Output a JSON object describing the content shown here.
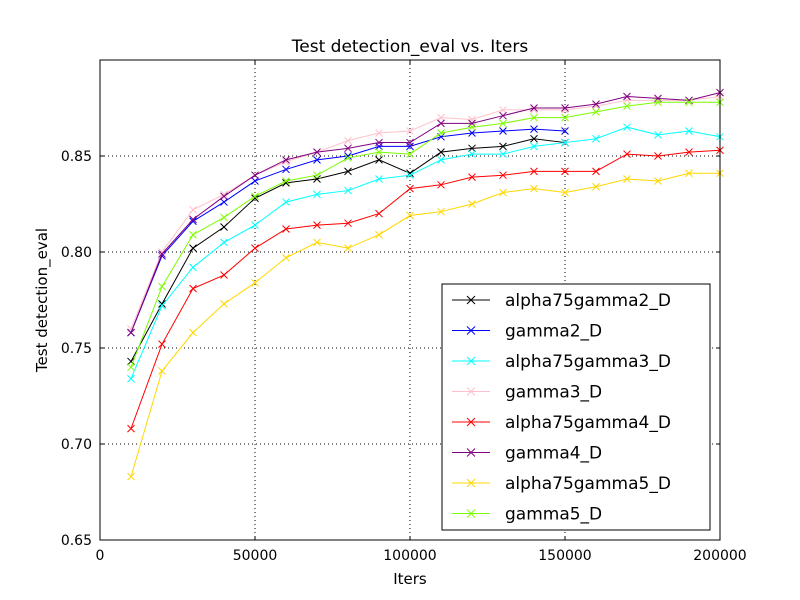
{
  "chart_data": {
    "type": "line",
    "title": "Test detection_eval  vs. Iters",
    "xlabel": "Iters",
    "ylabel": "Test detection_eval",
    "xlim": [
      0,
      200000
    ],
    "ylim": [
      0.65,
      0.9
    ],
    "xticks": [
      0,
      50000,
      100000,
      150000,
      200000
    ],
    "xtick_labels": [
      "0",
      "50000",
      "100000",
      "150000",
      "200000"
    ],
    "yticks": [
      0.65,
      0.7,
      0.75,
      0.8,
      0.85
    ],
    "ytick_labels": [
      "0.65",
      "0.70",
      "0.75",
      "0.80",
      "0.85"
    ],
    "grid": true,
    "legend_position": "lower-right",
    "series": [
      {
        "name": "alpha75gamma2_D",
        "color": "#000000",
        "x": [
          10000,
          20000,
          30000,
          40000,
          50000,
          60000,
          70000,
          80000,
          90000,
          100000,
          110000,
          120000,
          130000,
          140000,
          150000
        ],
        "y": [
          0.743,
          0.773,
          0.802,
          0.813,
          0.828,
          0.836,
          0.838,
          0.842,
          0.848,
          0.841,
          0.852,
          0.854,
          0.855,
          0.859,
          0.857
        ]
      },
      {
        "name": "gamma2_D",
        "color": "#0000ff",
        "x": [
          10000,
          20000,
          30000,
          40000,
          50000,
          60000,
          70000,
          80000,
          90000,
          100000,
          110000,
          120000,
          130000,
          140000,
          150000
        ],
        "y": [
          0.758,
          0.798,
          0.816,
          0.826,
          0.837,
          0.843,
          0.848,
          0.85,
          0.855,
          0.855,
          0.86,
          0.862,
          0.863,
          0.864,
          0.863
        ]
      },
      {
        "name": "alpha75gamma3_D",
        "color": "#00ffff",
        "x": [
          10000,
          20000,
          30000,
          40000,
          50000,
          60000,
          70000,
          80000,
          90000,
          100000,
          110000,
          120000,
          130000,
          140000,
          150000,
          160000,
          170000,
          180000,
          190000,
          200000
        ],
        "y": [
          0.734,
          0.772,
          0.792,
          0.805,
          0.814,
          0.826,
          0.83,
          0.832,
          0.838,
          0.84,
          0.848,
          0.851,
          0.851,
          0.855,
          0.857,
          0.859,
          0.865,
          0.861,
          0.863,
          0.86
        ]
      },
      {
        "name": "gamma3_D",
        "color": "#ffc0cb",
        "x": [
          10000,
          20000,
          30000,
          40000,
          50000,
          60000,
          70000,
          80000,
          90000,
          100000,
          110000,
          120000,
          130000,
          140000,
          150000,
          160000,
          170000,
          180000,
          190000,
          200000
        ],
        "y": [
          0.76,
          0.8,
          0.822,
          0.83,
          0.84,
          0.847,
          0.852,
          0.858,
          0.862,
          0.863,
          0.87,
          0.869,
          0.874,
          0.874,
          0.874,
          0.876,
          0.879,
          0.879,
          0.879,
          0.881
        ]
      },
      {
        "name": "alpha75gamma4_D",
        "color": "#ff0000",
        "x": [
          10000,
          20000,
          30000,
          40000,
          50000,
          60000,
          70000,
          80000,
          90000,
          100000,
          110000,
          120000,
          130000,
          140000,
          150000,
          160000,
          170000,
          180000,
          190000,
          200000
        ],
        "y": [
          0.708,
          0.752,
          0.781,
          0.788,
          0.802,
          0.812,
          0.814,
          0.815,
          0.82,
          0.833,
          0.835,
          0.839,
          0.84,
          0.842,
          0.842,
          0.842,
          0.851,
          0.85,
          0.852,
          0.853
        ]
      },
      {
        "name": "gamma4_D",
        "color": "#800080",
        "x": [
          10000,
          20000,
          30000,
          40000,
          50000,
          60000,
          70000,
          80000,
          90000,
          100000,
          110000,
          120000,
          130000,
          140000,
          150000,
          160000,
          170000,
          180000,
          190000,
          200000
        ],
        "y": [
          0.758,
          0.799,
          0.817,
          0.829,
          0.84,
          0.848,
          0.852,
          0.854,
          0.857,
          0.857,
          0.867,
          0.867,
          0.871,
          0.875,
          0.875,
          0.877,
          0.881,
          0.88,
          0.879,
          0.883
        ]
      },
      {
        "name": "alpha75gamma5_D",
        "color": "#ffd700",
        "x": [
          10000,
          20000,
          30000,
          40000,
          50000,
          60000,
          70000,
          80000,
          90000,
          100000,
          110000,
          120000,
          130000,
          140000,
          150000,
          160000,
          170000,
          180000,
          190000,
          200000
        ],
        "y": [
          0.683,
          0.738,
          0.758,
          0.773,
          0.784,
          0.797,
          0.805,
          0.802,
          0.809,
          0.819,
          0.821,
          0.825,
          0.831,
          0.833,
          0.831,
          0.834,
          0.838,
          0.837,
          0.841,
          0.841
        ]
      },
      {
        "name": "gamma5_D",
        "color": "#7cfc00",
        "x": [
          10000,
          20000,
          30000,
          40000,
          50000,
          60000,
          70000,
          80000,
          90000,
          100000,
          110000,
          120000,
          130000,
          140000,
          150000,
          160000,
          170000,
          180000,
          190000,
          200000
        ],
        "y": [
          0.74,
          0.782,
          0.809,
          0.818,
          0.829,
          0.837,
          0.84,
          0.849,
          0.852,
          0.851,
          0.862,
          0.865,
          0.867,
          0.87,
          0.87,
          0.873,
          0.876,
          0.878,
          0.878,
          0.878
        ]
      }
    ]
  }
}
